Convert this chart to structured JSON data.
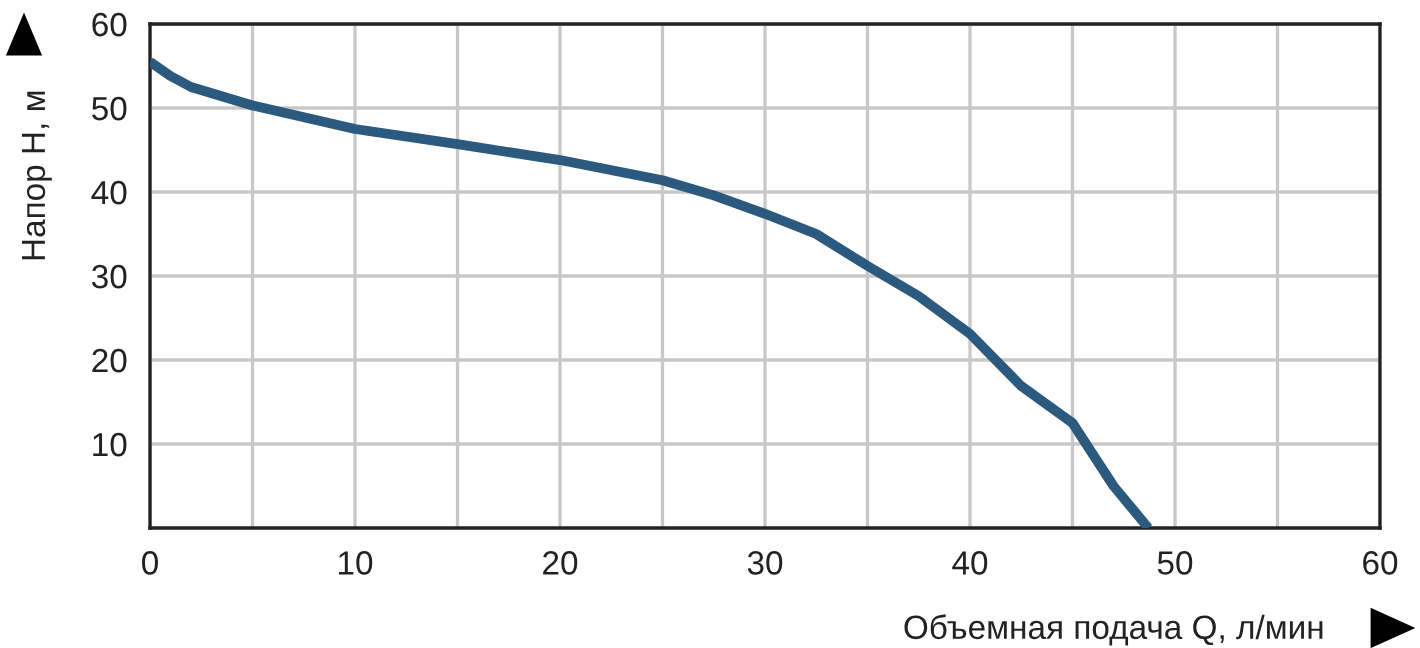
{
  "chart_data": {
    "type": "line",
    "xlabel": "Объемная подача Q, л/мин",
    "ylabel": "Напор H, м",
    "x": [
      0,
      1,
      2,
      5,
      10,
      15,
      20,
      25,
      27.5,
      30,
      32.5,
      35,
      37.5,
      40,
      42.5,
      45,
      47,
      48.7
    ],
    "series": [
      {
        "color": "#2b5a7e",
        "values": [
          55.5,
          53.8,
          52.5,
          50.3,
          47.5,
          45.7,
          43.8,
          41.4,
          39.6,
          37.4,
          35,
          31.2,
          27.6,
          23.1,
          16.9,
          12.5,
          5,
          0
        ]
      }
    ],
    "xlim": [
      0,
      60
    ],
    "ylim": [
      0,
      60
    ],
    "xticks": [
      0,
      {
        "value": 5,
        "label": null
      },
      10,
      {
        "value": 15,
        "label": null
      },
      20,
      {
        "value": 25,
        "label": null
      },
      30,
      {
        "value": 35,
        "label": null
      },
      40,
      {
        "value": 45,
        "label": null
      },
      50,
      {
        "value": 55,
        "label": null
      },
      60
    ],
    "yticks": [
      10,
      20,
      30,
      40,
      50,
      60
    ],
    "grid": true,
    "marker": "none",
    "line_style": "solid"
  }
}
